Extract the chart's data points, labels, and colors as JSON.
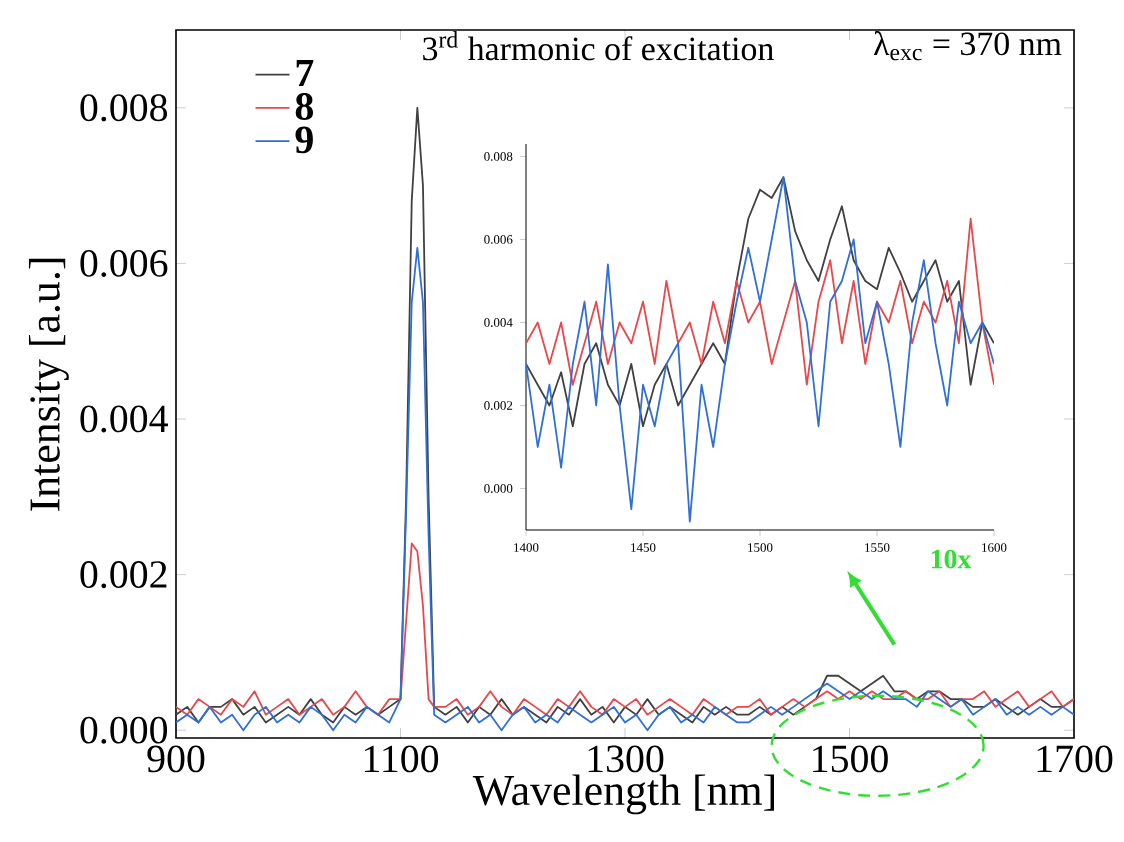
{
  "chart_data": [
    {
      "type": "line",
      "xlabel": "Wavelength [nm]",
      "ylabel": "Intensity [a.u.]",
      "annotations": [
        "3$^{rd}$ harmonic of excitation",
        "λ$_{exc}$ = 370 nm",
        "10x"
      ],
      "xlim": [
        900,
        1700
      ],
      "ylim": [
        -0.0001,
        0.009
      ],
      "xticks": [
        900,
        1100,
        1300,
        1500,
        1700
      ],
      "yticks": [
        {
          "value": 0,
          "label": "0.000"
        },
        {
          "value": 0.002,
          "label": "0.002"
        },
        {
          "value": 0.004,
          "label": "0.004"
        },
        {
          "value": 0.006,
          "label": "0.006"
        },
        {
          "value": 0.008,
          "label": "0.008"
        }
      ],
      "legend": "top left",
      "grid": false,
      "x": [
        900,
        910,
        920,
        930,
        940,
        950,
        960,
        970,
        980,
        990,
        1000,
        1010,
        1020,
        1030,
        1040,
        1050,
        1060,
        1070,
        1080,
        1090,
        1100,
        1105,
        1110,
        1115,
        1120,
        1125,
        1130,
        1140,
        1150,
        1160,
        1170,
        1180,
        1190,
        1200,
        1210,
        1220,
        1230,
        1240,
        1250,
        1260,
        1270,
        1280,
        1290,
        1300,
        1310,
        1320,
        1330,
        1340,
        1350,
        1360,
        1370,
        1380,
        1390,
        1400,
        1410,
        1420,
        1430,
        1440,
        1450,
        1460,
        1470,
        1480,
        1490,
        1500,
        1510,
        1520,
        1530,
        1540,
        1550,
        1560,
        1570,
        1580,
        1590,
        1600,
        1610,
        1620,
        1630,
        1640,
        1650,
        1660,
        1670,
        1680,
        1690,
        1700
      ],
      "series": [
        {
          "name": "7",
          "color": "#404040",
          "values": [
            0.0002,
            0.0003,
            0.0001,
            0.0003,
            0.0003,
            0.0004,
            0.0002,
            0.0003,
            0.0001,
            0.0002,
            0.0003,
            0.0002,
            0.0004,
            0.0002,
            0.0001,
            0.0003,
            0.0002,
            0.0003,
            0.0002,
            0.0003,
            0.0004,
            0.003,
            0.0068,
            0.008,
            0.007,
            0.003,
            0.0003,
            0.0002,
            0.0003,
            0.0001,
            0.0003,
            0.0002,
            0.0004,
            0.0002,
            0.0003,
            0.0002,
            0.0001,
            0.0003,
            0.0002,
            0.0004,
            0.0002,
            0.0003,
            0.0001,
            0.0003,
            0.0002,
            0.0004,
            0.0002,
            0.0003,
            0.0002,
            0.0001,
            0.0003,
            0.0002,
            0.0003,
            0.0002,
            0.0002,
            0.0003,
            0.0002,
            0.0003,
            0.0002,
            0.0003,
            0.0004,
            0.0007,
            0.0007,
            0.0006,
            0.0005,
            0.0006,
            0.0007,
            0.0005,
            0.0005,
            0.0004,
            0.0005,
            0.0005,
            0.0004,
            0.0004,
            0.0003,
            0.0003,
            0.0004,
            0.0003,
            0.0002,
            0.0003,
            0.0004,
            0.0003,
            0.0003,
            0.0004
          ]
        },
        {
          "name": "8",
          "color": "#e8474b",
          "values": [
            0.0003,
            0.0002,
            0.0004,
            0.0003,
            0.0002,
            0.0004,
            0.0003,
            0.0005,
            0.0002,
            0.0003,
            0.0004,
            0.0002,
            0.0003,
            0.0004,
            0.0002,
            0.0003,
            0.0005,
            0.0003,
            0.0002,
            0.0004,
            0.0004,
            0.0014,
            0.0024,
            0.0023,
            0.0016,
            0.0004,
            0.0003,
            0.0003,
            0.0004,
            0.0002,
            0.0003,
            0.0005,
            0.0003,
            0.0002,
            0.0004,
            0.0003,
            0.0002,
            0.0004,
            0.0003,
            0.0005,
            0.0003,
            0.0002,
            0.0004,
            0.0003,
            0.0004,
            0.0002,
            0.0003,
            0.0004,
            0.0003,
            0.0002,
            0.0004,
            0.0003,
            0.0002,
            0.0003,
            0.0003,
            0.0004,
            0.0002,
            0.0003,
            0.0004,
            0.0003,
            0.0004,
            0.0005,
            0.0004,
            0.0005,
            0.0004,
            0.0005,
            0.0004,
            0.0004,
            0.0005,
            0.0004,
            0.0004,
            0.0005,
            0.0003,
            0.0004,
            0.0004,
            0.0005,
            0.0003,
            0.0004,
            0.0005,
            0.0003,
            0.0004,
            0.0005,
            0.0003,
            0.0004
          ]
        },
        {
          "name": "9",
          "color": "#2f6fd6",
          "values": [
            0.0001,
            0.0002,
            0.0001,
            0.0003,
            0.0001,
            0.0002,
            0.0,
            0.0002,
            0.0003,
            0.0001,
            0.0002,
            0.0001,
            0.0003,
            0.0002,
            0.0,
            0.0002,
            0.0001,
            0.0003,
            0.0002,
            0.0001,
            0.0004,
            0.0028,
            0.0055,
            0.0062,
            0.0055,
            0.0025,
            0.0002,
            0.0001,
            0.0002,
            0.0003,
            0.0001,
            0.0002,
            0.0,
            0.0002,
            0.0003,
            0.0001,
            0.0002,
            0.0001,
            0.0003,
            0.0002,
            0.0001,
            0.0002,
            0.0003,
            0.0001,
            0.0002,
            0.0,
            0.0002,
            0.0003,
            0.0001,
            0.0002,
            0.0001,
            0.0003,
            0.0002,
            0.0001,
            0.0001,
            0.0002,
            0.0003,
            0.0002,
            0.0003,
            0.0004,
            0.0005,
            0.0006,
            0.0005,
            0.0004,
            0.0005,
            0.0004,
            0.0005,
            0.0004,
            0.0004,
            0.0003,
            0.0005,
            0.0004,
            0.0003,
            0.0004,
            0.0002,
            0.0003,
            0.0004,
            0.0002,
            0.0003,
            0.0002,
            0.0003,
            0.0002,
            0.0003,
            0.0002
          ]
        }
      ]
    },
    {
      "type": "line",
      "xlim": [
        1400,
        1600
      ],
      "ylim": [
        -0.001,
        0.0083
      ],
      "xticks": [
        1400,
        1450,
        1500,
        1550,
        1600
      ],
      "yticks": [
        {
          "value": 0,
          "label": "0.000"
        },
        {
          "value": 0.002,
          "label": "0.002"
        },
        {
          "value": 0.004,
          "label": "0.004"
        },
        {
          "value": 0.006,
          "label": "0.006"
        },
        {
          "value": 0.008,
          "label": "0.008"
        }
      ],
      "grid": false,
      "x": [
        1400,
        1405,
        1410,
        1415,
        1420,
        1425,
        1430,
        1435,
        1440,
        1445,
        1450,
        1455,
        1460,
        1465,
        1470,
        1475,
        1480,
        1485,
        1490,
        1495,
        1500,
        1505,
        1510,
        1515,
        1520,
        1525,
        1530,
        1535,
        1540,
        1545,
        1550,
        1555,
        1560,
        1565,
        1570,
        1575,
        1580,
        1585,
        1590,
        1595,
        1600
      ],
      "series": [
        {
          "color": "#404040",
          "values": [
            0.003,
            0.0025,
            0.002,
            0.0028,
            0.0015,
            0.003,
            0.0035,
            0.0025,
            0.002,
            0.003,
            0.0015,
            0.0025,
            0.003,
            0.002,
            0.0025,
            0.003,
            0.0035,
            0.003,
            0.005,
            0.0065,
            0.0072,
            0.007,
            0.0075,
            0.0062,
            0.0055,
            0.005,
            0.006,
            0.0068,
            0.0055,
            0.005,
            0.0048,
            0.0058,
            0.0052,
            0.0045,
            0.005,
            0.0055,
            0.0045,
            0.005,
            0.0025,
            0.004,
            0.0035
          ]
        },
        {
          "color": "#e8474b",
          "values": [
            0.0035,
            0.004,
            0.003,
            0.004,
            0.0025,
            0.0035,
            0.0045,
            0.003,
            0.004,
            0.0035,
            0.0045,
            0.003,
            0.005,
            0.0035,
            0.004,
            0.003,
            0.0045,
            0.0035,
            0.005,
            0.004,
            0.0045,
            0.003,
            0.004,
            0.005,
            0.0025,
            0.0045,
            0.0055,
            0.0035,
            0.005,
            0.003,
            0.0045,
            0.004,
            0.005,
            0.0035,
            0.0045,
            0.004,
            0.005,
            0.0035,
            0.0065,
            0.004,
            0.0025
          ]
        },
        {
          "color": "#2f6fd6",
          "values": [
            0.003,
            0.001,
            0.0025,
            0.0005,
            0.003,
            0.0045,
            0.002,
            0.0054,
            0.002,
            -0.0005,
            0.0025,
            0.0015,
            0.003,
            0.0035,
            -0.0008,
            0.0025,
            0.001,
            0.003,
            0.0045,
            0.0058,
            0.0045,
            0.006,
            0.0075,
            0.005,
            0.004,
            0.0015,
            0.0045,
            0.005,
            0.006,
            0.0035,
            0.0045,
            0.003,
            0.001,
            0.004,
            0.0055,
            0.0035,
            0.002,
            0.0045,
            0.0035,
            0.004,
            0.003
          ]
        }
      ]
    }
  ]
}
